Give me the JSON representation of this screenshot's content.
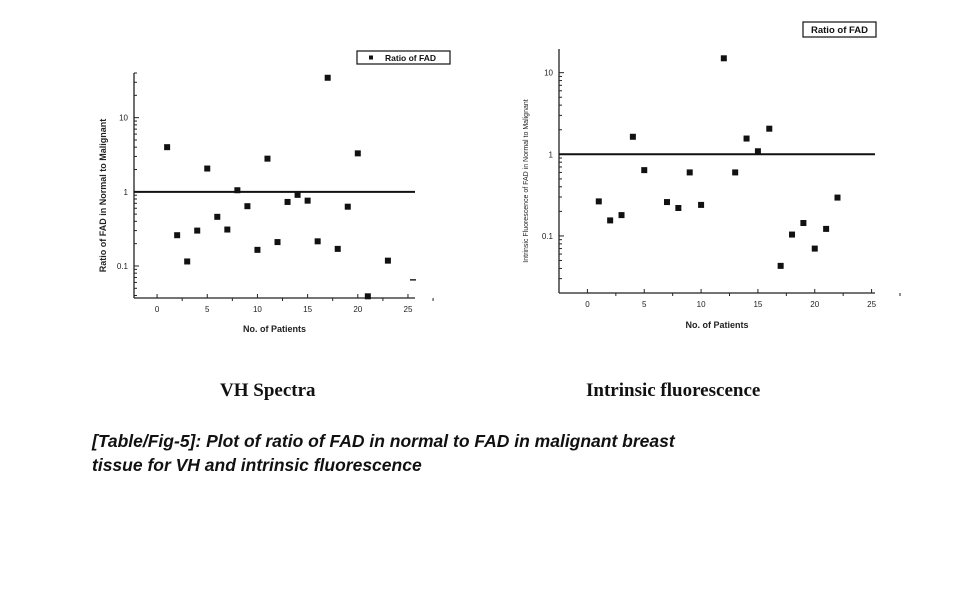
{
  "chart_data": [
    {
      "type": "scatter",
      "title": "VH Spectra",
      "xlabel": "No. of Patients",
      "ylabel": "Ratio of FAD in Normal to Malignant",
      "xlim": [
        -2.3,
        25.7
      ],
      "ylim": [
        0.037,
        40
      ],
      "yscale": "log",
      "xticks": [
        0,
        5,
        10,
        15,
        20,
        25
      ],
      "yticks": [
        0.1,
        1,
        10
      ],
      "ytick_labels": [
        "0.1",
        "1",
        "10"
      ],
      "reference_line_y": 1,
      "legend": "Ratio of FAD",
      "legend_position": "top-right",
      "grid": false,
      "series": [
        {
          "name": "Ratio of FAD",
          "x": [
            1,
            2,
            3,
            4,
            5,
            6,
            7,
            8,
            9,
            10,
            11,
            12,
            13,
            14,
            15,
            16,
            17,
            18,
            19,
            20,
            21,
            23,
            25.5
          ],
          "y": [
            4.0,
            0.26,
            0.115,
            0.3,
            2.06,
            0.46,
            0.31,
            1.05,
            0.64,
            0.165,
            2.8,
            0.21,
            0.73,
            0.91,
            0.76,
            0.215,
            34.5,
            0.17,
            0.63,
            3.3,
            0.039,
            0.118,
            0.065
          ]
        }
      ]
    },
    {
      "type": "scatter",
      "title": "Intrinsic fluorescence",
      "xlabel": "No. of Patients",
      "ylabel": "Intrinsic Fluorescence of FAD in Normal to Malignant",
      "xlim": [
        -2.5,
        25.3
      ],
      "ylim": [
        0.02,
        19.5
      ],
      "yscale": "log",
      "xticks": [
        0,
        5,
        10,
        15,
        20,
        25
      ],
      "yticks": [
        0.1,
        1,
        10
      ],
      "ytick_labels": [
        "0.1",
        "1",
        "10"
      ],
      "reference_line_y": 1,
      "legend": "Ratio of FAD",
      "legend_position": "top-right",
      "grid": false,
      "series": [
        {
          "name": "Ratio of FAD",
          "x": [
            1,
            2,
            3,
            4,
            5,
            7,
            8,
            9,
            10,
            12,
            13,
            14,
            15,
            16,
            17,
            18,
            19,
            20,
            21,
            22
          ],
          "y": [
            0.265,
            0.155,
            0.18,
            1.64,
            0.64,
            0.26,
            0.22,
            0.6,
            0.24,
            15,
            0.6,
            1.56,
            1.09,
            2.06,
            0.043,
            0.104,
            0.144,
            0.07,
            0.122,
            0.295
          ]
        }
      ]
    }
  ],
  "caption": {
    "line1": "[Table/Fig-5]: Plot of ratio of FAD in normal to FAD in malignant breast",
    "line2": "tissue for VH and intrinsic fluorescence"
  }
}
